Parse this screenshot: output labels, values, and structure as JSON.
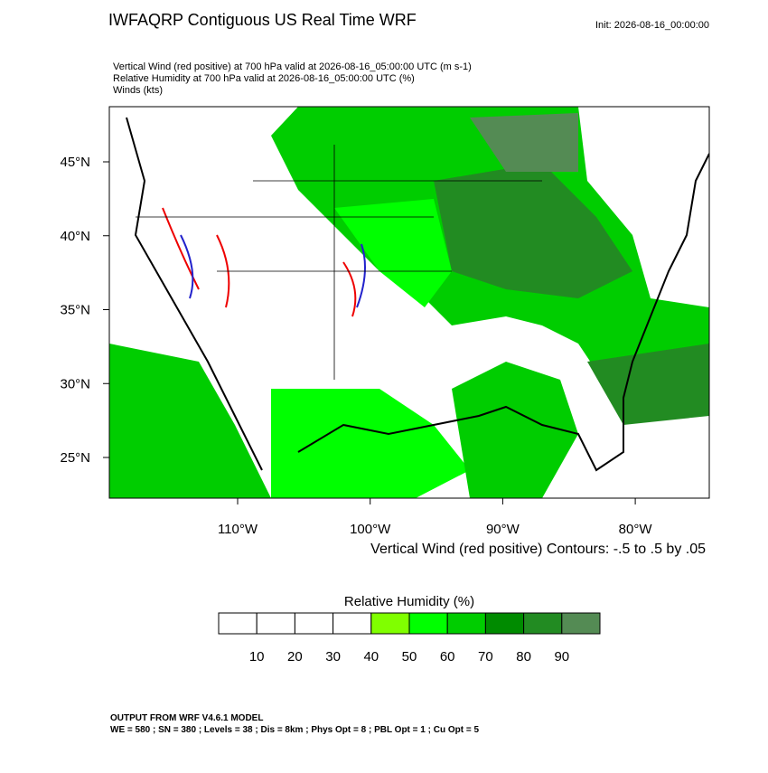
{
  "header": {
    "title": "IWFAQRP Contiguous US Real Time WRF",
    "init": "Init: 2026-08-16_00:00:00",
    "fields": [
      "Vertical Wind (red positive) at 700 hPa valid at 2026-08-16_05:00:00 UTC   (m s-1)",
      "Relative Humidity at 700 hPa valid at 2026-08-16_05:00:00 UTC   (%)",
      "Winds   (kts)"
    ]
  },
  "map": {
    "lat_labels": [
      "45°N",
      "40°N",
      "35°N",
      "30°N",
      "25°N"
    ],
    "lon_labels": [
      "110°W",
      "100°W",
      "90°W",
      "80°W"
    ],
    "contour_note": "Vertical Wind (red positive) Contours: -.5 to .5 by .05"
  },
  "colorbar": {
    "title": "Relative Humidity  (%)",
    "colors": [
      "#ffffff",
      "#ffffff",
      "#ffffff",
      "#ffffff",
      "#80ff00",
      "#00ff00",
      "#00cd00",
      "#008b00",
      "#228b22",
      "#548b54"
    ],
    "ticks": [
      10,
      20,
      30,
      40,
      50,
      60,
      70,
      80,
      90
    ]
  },
  "footer": [
    "OUTPUT FROM WRF V4.6.1 MODEL",
    "WE = 580 ; SN = 380 ; Levels = 38 ; Dis = 8km ; Phys Opt = 8 ; PBL Opt = 1 ; Cu Opt = 5"
  ]
}
